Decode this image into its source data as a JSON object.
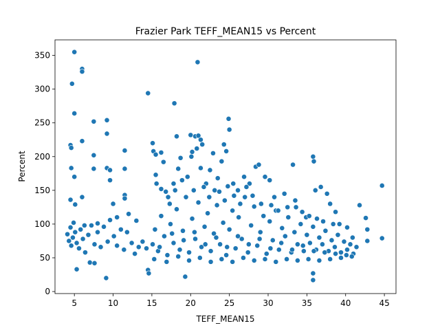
{
  "chart_data": {
    "type": "scatter",
    "title": "Frazier Park TEFF_MEAN15 vs Percent",
    "xlabel": "TEFF_MEAN15",
    "ylabel": "Percent",
    "xlim": [
      2.5,
      46.5
    ],
    "ylim": [
      -3,
      373
    ],
    "xticks": [
      5,
      10,
      15,
      20,
      25,
      30,
      35,
      40,
      45
    ],
    "yticks": [
      0,
      50,
      100,
      150,
      200,
      250,
      300,
      350
    ],
    "grid": false,
    "legend": "none",
    "marker_color": "#1f77b4",
    "marker_edge_color": "#ffffff",
    "series": [
      {
        "points": [
          [
            4.3,
            75
          ],
          [
            4.1,
            85
          ],
          [
            4.5,
            95
          ],
          [
            4.8,
            80
          ],
          [
            4.6,
            68
          ],
          [
            5.1,
            88
          ],
          [
            5.3,
            72
          ],
          [
            4.9,
            102
          ],
          [
            5.6,
            64
          ],
          [
            5.8,
            92
          ],
          [
            6.1,
            78
          ],
          [
            6.4,
            58
          ],
          [
            6.8,
            84
          ],
          [
            7.2,
            98
          ],
          [
            7.6,
            70
          ],
          [
            8.0,
            88
          ],
          [
            8.4,
            66
          ],
          [
            8.8,
            96
          ],
          [
            9.3,
            74
          ],
          [
            9.6,
            106
          ],
          [
            10.1,
            82
          ],
          [
            10.5,
            68
          ],
          [
            11.0,
            92
          ],
          [
            11.4,
            62
          ],
          [
            11.8,
            88
          ],
          [
            12.4,
            72
          ],
          [
            12.8,
            56
          ],
          [
            13.3,
            66
          ],
          [
            13.8,
            74
          ],
          [
            14.3,
            64
          ],
          [
            4.7,
            308
          ],
          [
            4.5,
            217
          ],
          [
            4.6,
            213
          ],
          [
            4.6,
            183
          ],
          [
            4.5,
            136
          ],
          [
            5.0,
            355
          ],
          [
            5.0,
            264
          ],
          [
            5.0,
            170
          ],
          [
            5.1,
            129
          ],
          [
            5.3,
            33
          ],
          [
            6.0,
            330
          ],
          [
            6.0,
            326
          ],
          [
            6.0,
            223
          ],
          [
            6.0,
            140
          ],
          [
            6.3,
            98
          ],
          [
            7.0,
            43
          ],
          [
            7.5,
            252
          ],
          [
            7.5,
            202
          ],
          [
            7.5,
            182
          ],
          [
            7.6,
            42
          ],
          [
            8.0,
            101
          ],
          [
            9.2,
            254
          ],
          [
            9.2,
            234
          ],
          [
            9.2,
            183
          ],
          [
            9.1,
            20
          ],
          [
            9.6,
            165
          ],
          [
            9.6,
            180
          ],
          [
            10.0,
            130
          ],
          [
            10.5,
            110
          ],
          [
            11.5,
            209
          ],
          [
            11.5,
            182
          ],
          [
            11.5,
            143
          ],
          [
            11.5,
            138
          ],
          [
            12.0,
            115
          ],
          [
            13.0,
            105
          ],
          [
            14.5,
            294
          ],
          [
            14.5,
            32
          ],
          [
            14.6,
            27
          ],
          [
            15.1,
            220
          ],
          [
            15.2,
            208
          ],
          [
            15.5,
            203
          ],
          [
            15.5,
            173
          ],
          [
            16.2,
            206
          ],
          [
            16.5,
            192
          ],
          [
            16.2,
            152
          ],
          [
            16.8,
            148
          ],
          [
            17.3,
            130
          ],
          [
            17.9,
            279
          ],
          [
            17.8,
            160
          ],
          [
            18.2,
            230
          ],
          [
            18.4,
            182
          ],
          [
            18.9,
            165
          ],
          [
            18.7,
            198
          ],
          [
            19.3,
            22
          ],
          [
            20.0,
            232
          ],
          [
            20.2,
            207
          ],
          [
            20.1,
            200
          ],
          [
            20.6,
            230
          ],
          [
            20.9,
            340
          ],
          [
            20.8,
            212
          ],
          [
            21.0,
            231
          ],
          [
            21.3,
            225
          ],
          [
            21.5,
            218
          ],
          [
            21.3,
            183
          ],
          [
            22.0,
            160
          ],
          [
            22.5,
            180
          ],
          [
            22.9,
            205
          ],
          [
            23.1,
            150
          ],
          [
            23.5,
            168
          ],
          [
            24.0,
            193
          ],
          [
            24.3,
            218
          ],
          [
            24.6,
            208
          ],
          [
            24.8,
            156
          ],
          [
            24.9,
            256
          ],
          [
            25.0,
            240
          ],
          [
            25.5,
            160
          ],
          [
            26.1,
            150
          ],
          [
            26.9,
            170
          ],
          [
            27.6,
            160
          ],
          [
            28.4,
            185
          ],
          [
            28.8,
            188
          ],
          [
            29.6,
            170
          ],
          [
            30.2,
            165
          ],
          [
            30.8,
            140
          ],
          [
            32.1,
            145
          ],
          [
            33.2,
            188
          ],
          [
            33.6,
            125
          ],
          [
            34.9,
            110
          ],
          [
            35.8,
            200
          ],
          [
            35.9,
            193
          ],
          [
            35.8,
            27
          ],
          [
            35.8,
            17
          ],
          [
            36.1,
            150
          ],
          [
            36.8,
            155
          ],
          [
            37.6,
            145
          ],
          [
            38.0,
            130
          ],
          [
            38.7,
            118
          ],
          [
            39.2,
            100
          ],
          [
            40.2,
            95
          ],
          [
            40.9,
            80
          ],
          [
            41.8,
            128
          ],
          [
            42.6,
            109
          ],
          [
            42.8,
            92
          ],
          [
            42.8,
            75
          ],
          [
            44.7,
            157
          ],
          [
            44.7,
            79
          ],
          [
            15.1,
            70
          ],
          [
            15.4,
            92
          ],
          [
            15.8,
            60
          ],
          [
            16.2,
            112
          ],
          [
            16.6,
            82
          ],
          [
            17.0,
            54
          ],
          [
            17.4,
            100
          ],
          [
            17.8,
            72
          ],
          [
            18.2,
            122
          ],
          [
            18.6,
            62
          ],
          [
            19.0,
            90
          ],
          [
            19.4,
            140
          ],
          [
            19.8,
            58
          ],
          [
            20.2,
            108
          ],
          [
            20.6,
            78
          ],
          [
            21.0,
            132
          ],
          [
            21.4,
            66
          ],
          [
            21.8,
            96
          ],
          [
            22.2,
            116
          ],
          [
            22.6,
            60
          ],
          [
            23.0,
            86
          ],
          [
            23.4,
            128
          ],
          [
            23.8,
            70
          ],
          [
            24.2,
            102
          ],
          [
            24.6,
            54
          ],
          [
            25.0,
            92
          ],
          [
            25.4,
            120
          ],
          [
            25.8,
            64
          ],
          [
            26.2,
            110
          ],
          [
            26.6,
            78
          ],
          [
            27.0,
            140
          ],
          [
            27.4,
            58
          ],
          [
            27.8,
            98
          ],
          [
            28.2,
            126
          ],
          [
            28.6,
            68
          ],
          [
            29.0,
            88
          ],
          [
            29.4,
            112
          ],
          [
            29.8,
            56
          ],
          [
            30.2,
            104
          ],
          [
            30.6,
            76
          ],
          [
            31.0,
            120
          ],
          [
            31.4,
            62
          ],
          [
            31.8,
            94
          ],
          [
            32.2,
            82
          ],
          [
            32.6,
            110
          ],
          [
            33.0,
            58
          ],
          [
            33.4,
            88
          ],
          [
            33.8,
            70
          ],
          [
            34.2,
            100
          ],
          [
            34.6,
            60
          ],
          [
            35.0,
            84
          ],
          [
            35.4,
            72
          ],
          [
            35.8,
            96
          ],
          [
            36.2,
            62
          ],
          [
            36.6,
            80
          ],
          [
            37.0,
            70
          ],
          [
            37.4,
            90
          ],
          [
            37.8,
            60
          ],
          [
            38.2,
            76
          ],
          [
            38.6,
            66
          ],
          [
            39.0,
            84
          ],
          [
            39.4,
            58
          ],
          [
            39.8,
            74
          ],
          [
            40.2,
            62
          ],
          [
            40.6,
            70
          ],
          [
            41.0,
            56
          ],
          [
            41.4,
            66
          ],
          [
            15.3,
            48
          ],
          [
            16.0,
            66
          ],
          [
            16.9,
            44
          ],
          [
            17.6,
            86
          ],
          [
            18.4,
            52
          ],
          [
            19.1,
            76
          ],
          [
            19.8,
            46
          ],
          [
            20.5,
            88
          ],
          [
            21.2,
            50
          ],
          [
            21.9,
            70
          ],
          [
            22.6,
            44
          ],
          [
            23.3,
            80
          ],
          [
            24.0,
            48
          ],
          [
            24.7,
            66
          ],
          [
            25.4,
            44
          ],
          [
            26.1,
            82
          ],
          [
            26.8,
            50
          ],
          [
            27.5,
            70
          ],
          [
            28.2,
            46
          ],
          [
            28.9,
            78
          ],
          [
            29.6,
            48
          ],
          [
            30.3,
            64
          ],
          [
            31.0,
            44
          ],
          [
            31.7,
            72
          ],
          [
            32.4,
            48
          ],
          [
            33.1,
            62
          ],
          [
            33.8,
            46
          ],
          [
            34.5,
            68
          ],
          [
            35.2,
            48
          ],
          [
            35.9,
            60
          ],
          [
            36.6,
            46
          ],
          [
            37.3,
            58
          ],
          [
            38.0,
            48
          ],
          [
            38.7,
            56
          ],
          [
            39.4,
            50
          ],
          [
            40.1,
            54
          ],
          [
            40.8,
            52
          ],
          [
            15.6,
            160
          ],
          [
            17.1,
            140
          ],
          [
            18.0,
            150
          ],
          [
            19.6,
            170
          ],
          [
            20.4,
            150
          ],
          [
            21.7,
            155
          ],
          [
            22.4,
            140
          ],
          [
            23.7,
            148
          ],
          [
            24.4,
            135
          ],
          [
            25.6,
            142
          ],
          [
            26.4,
            130
          ],
          [
            27.2,
            155
          ],
          [
            28.0,
            142
          ],
          [
            29.1,
            130
          ],
          [
            30.4,
            128
          ],
          [
            31.3,
            120
          ],
          [
            32.5,
            125
          ],
          [
            33.5,
            135
          ],
          [
            34.4,
            118
          ],
          [
            35.3,
            112
          ],
          [
            36.3,
            108
          ],
          [
            37.1,
            104
          ],
          [
            38.4,
            100
          ]
        ]
      }
    ]
  }
}
